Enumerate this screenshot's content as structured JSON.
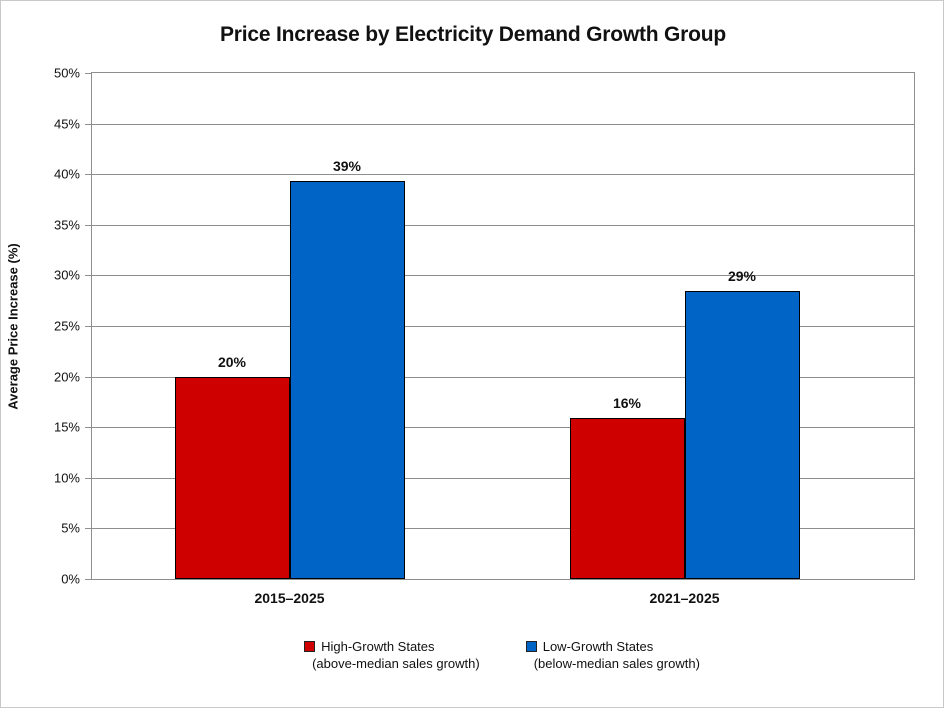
{
  "chart_data": {
    "type": "bar",
    "title": "Price Increase by Electricity Demand Growth Group",
    "xlabel": "",
    "ylabel": "Average Price Increase (%)",
    "categories": [
      "2015–2025",
      "2021–2025"
    ],
    "series": [
      {
        "name": "High-Growth States",
        "subtitle": "(above-median sales growth)",
        "color": "#ce0000",
        "values": [
          20.0,
          15.9
        ],
        "labels": [
          "20%",
          "16%"
        ]
      },
      {
        "name": "Low-Growth States",
        "subtitle": "(below-median sales growth)",
        "color": "#0063c6",
        "values": [
          39.3,
          28.5
        ],
        "labels": [
          "39%",
          "29%"
        ]
      }
    ],
    "ylim": [
      0,
      50
    ],
    "ytick_step": 5,
    "ytick_labels": [
      "0%",
      "5%",
      "10%",
      "15%",
      "20%",
      "25%",
      "30%",
      "35%",
      "40%",
      "45%",
      "50%"
    ],
    "grid": "horizontal",
    "gridline_color": "#8e8e8e",
    "bar_outline_color": "#000000",
    "legend_position": "bottom-center"
  }
}
